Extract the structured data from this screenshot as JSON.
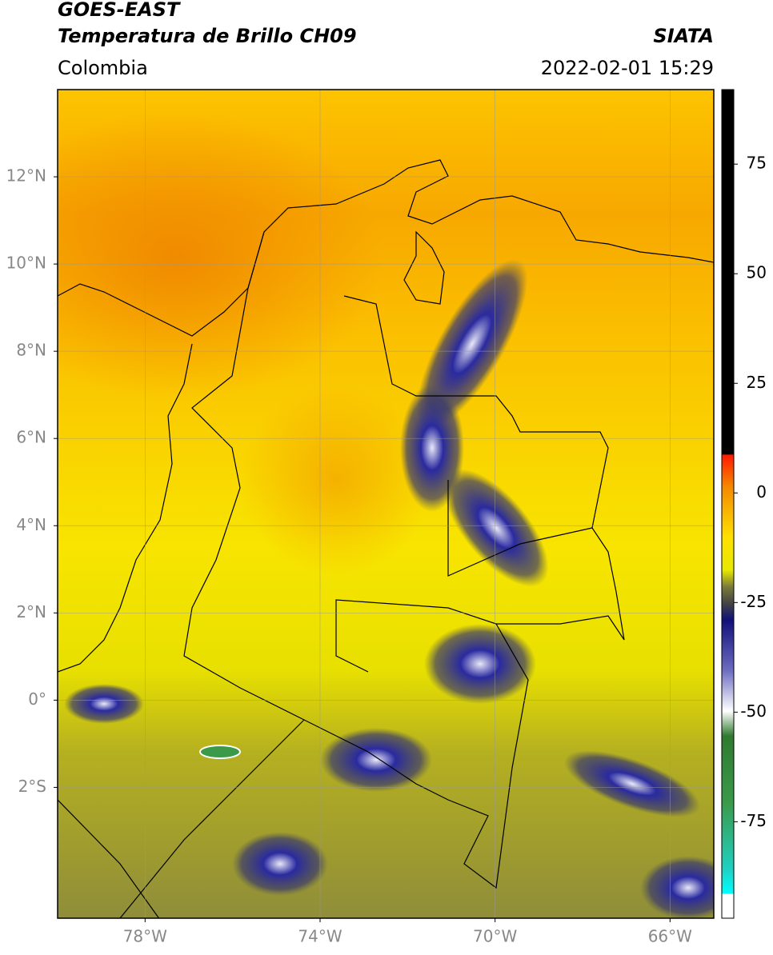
{
  "header": {
    "title": "GOES-EAST",
    "subtitle": "Temperatura de Brillo CH09",
    "region": "Colombia",
    "source": "SIATA",
    "datetime": "2022-02-01 15:29"
  },
  "map": {
    "latlim": [
      -5,
      14
    ],
    "lonlim": [
      -80,
      -65
    ],
    "lat_ticks": [
      {
        "value": 12,
        "label": "12°N"
      },
      {
        "value": 10,
        "label": "10°N"
      },
      {
        "value": 8,
        "label": "8°N"
      },
      {
        "value": 6,
        "label": "6°N"
      },
      {
        "value": 4,
        "label": "4°N"
      },
      {
        "value": 2,
        "label": "2°N"
      },
      {
        "value": 0,
        "label": "0°"
      },
      {
        "value": -2,
        "label": "2°S"
      }
    ],
    "lon_ticks": [
      {
        "value": -78,
        "label": "78°W"
      },
      {
        "value": -74,
        "label": "74°W"
      },
      {
        "value": -70,
        "label": "70°W"
      },
      {
        "value": -66,
        "label": "66°W"
      }
    ]
  },
  "colorbar": {
    "lim": [
      -97,
      92
    ],
    "ticks": [
      75,
      50,
      25,
      0,
      -25,
      -50,
      -75
    ]
  }
}
